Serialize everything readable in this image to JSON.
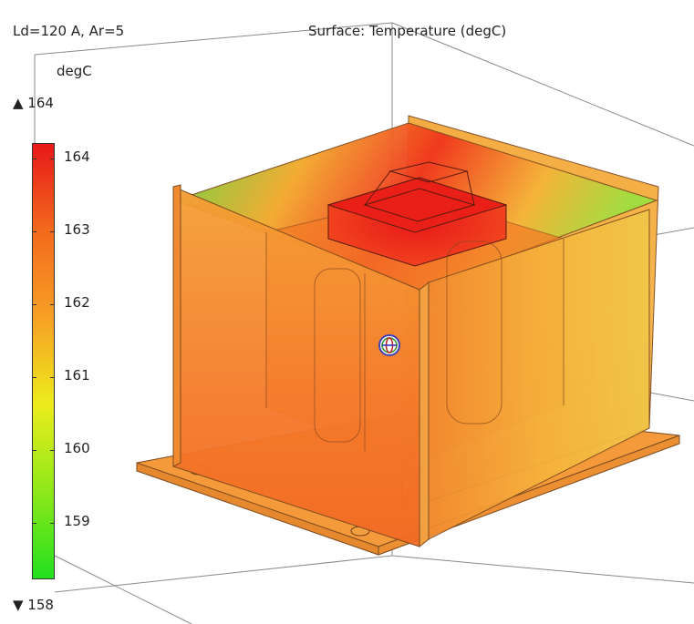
{
  "plot": {
    "info": "Ld=120 A, Ar=5",
    "title": "Surface: Temperature (degC)"
  },
  "colorbar": {
    "unit": "degC",
    "max_label": "▲ 164",
    "min_label": "▼ 158",
    "ticks": [
      "164",
      "163",
      "162",
      "161",
      "160",
      "159"
    ],
    "colors": [
      "#e8181a",
      "#f26a1c",
      "#f7a025",
      "#ecec1c",
      "#8ee81a",
      "#22e01e"
    ]
  },
  "icons": {
    "cursor": "orbit-center-icon"
  }
}
